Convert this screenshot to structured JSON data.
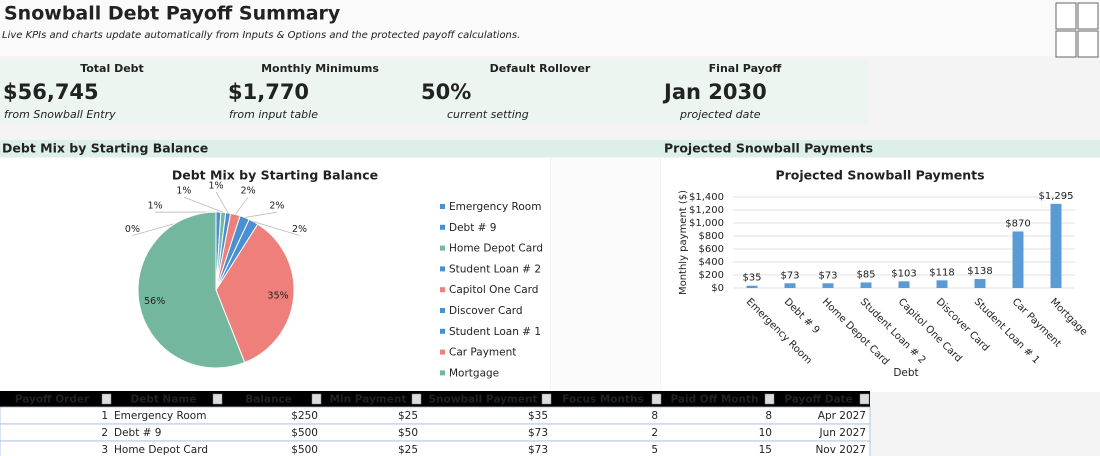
{
  "header": {
    "title": "Snowball Debt Payoff Summary",
    "subtitle": "Live KPIs and charts update automatically from Inputs & Options and the protected payoff calculations."
  },
  "kpis": [
    {
      "label": "Total Debt",
      "value": "$56,745",
      "note": "from Snowball Entry"
    },
    {
      "label": "Monthly Minimums",
      "value": "$1,770",
      "note": "from input table"
    },
    {
      "label": "Default Rollover",
      "value": "50%",
      "note": "current setting"
    },
    {
      "label": "Final Payoff",
      "value": "Jan 2030",
      "note": "projected date"
    }
  ],
  "sections": [
    {
      "title": "Debt Mix by Starting Balance"
    },
    {
      "title": "Projected Snowball Payments"
    }
  ],
  "chart_data": [
    {
      "type": "pie",
      "title": "Debt Mix by Starting Balance",
      "categories": [
        "Emergency Room",
        "Debt # 9",
        "Home Depot Card",
        "Student Loan # 2",
        "Capitol One Card",
        "Discover Card",
        "Student Loan # 1",
        "Car Payment",
        "Mortgage"
      ],
      "values": [
        0,
        1,
        1,
        1,
        2,
        2,
        2,
        35,
        56
      ],
      "value_labels": [
        "0%",
        "1%",
        "1%",
        "1%",
        "2%",
        "2%",
        "2%",
        "35%",
        "56%"
      ],
      "colors": [
        "#4a8fd1",
        "#4a8fd1",
        "#73b89e",
        "#4a8fd1",
        "#ee7f7b",
        "#4a8fd1",
        "#4a8fd1",
        "#ee7f7b",
        "#73b89e"
      ],
      "legend": "right"
    },
    {
      "type": "bar",
      "title": "Projected Snowball Payments",
      "x_label": "Debt",
      "y_label": "Monthly payment ($)",
      "categories": [
        "Emergency Room",
        "Debt # 9",
        "Home Depot Card",
        "Student Loan # 2",
        "Capitol One Card",
        "Discover Card",
        "Student Loan # 1",
        "Car Payment",
        "Mortgage"
      ],
      "values": [
        35,
        73,
        73,
        85,
        103,
        118,
        138,
        870,
        1295
      ],
      "value_labels": [
        "$35",
        "$73",
        "$73",
        "$85",
        "$103",
        "$118",
        "$138",
        "$870",
        "$1,295"
      ],
      "color": "#5b9bd5",
      "ylim": [
        0,
        1400
      ],
      "yticks": [
        {
          "value": 0,
          "label": "$0"
        },
        {
          "value": 200,
          "label": "$200"
        },
        {
          "value": 400,
          "label": "$400"
        },
        {
          "value": 600,
          "label": "$600"
        },
        {
          "value": 800,
          "label": "$800"
        },
        {
          "value": 1000,
          "label": "$1,000"
        },
        {
          "value": 1200,
          "label": "$1,200"
        },
        {
          "value": 1400,
          "label": "$1,400"
        }
      ],
      "grid": true
    }
  ],
  "table": {
    "columns": [
      "Payoff Order",
      "Debt Name",
      "Balance",
      "Min Payment",
      "Snowball Payment",
      "Focus Months",
      "Paid Off Month",
      "Payoff Date"
    ],
    "rows": [
      [
        1,
        "Emergency Room",
        "$250",
        "$25",
        "$35",
        8,
        8,
        "Apr 2027"
      ],
      [
        2,
        "Debt # 9",
        "$500",
        "$50",
        "$73",
        2,
        10,
        "Jun 2027"
      ],
      [
        3,
        "Home Depot Card",
        "$500",
        "$25",
        "$73",
        5,
        15,
        "Nov 2027"
      ]
    ]
  }
}
